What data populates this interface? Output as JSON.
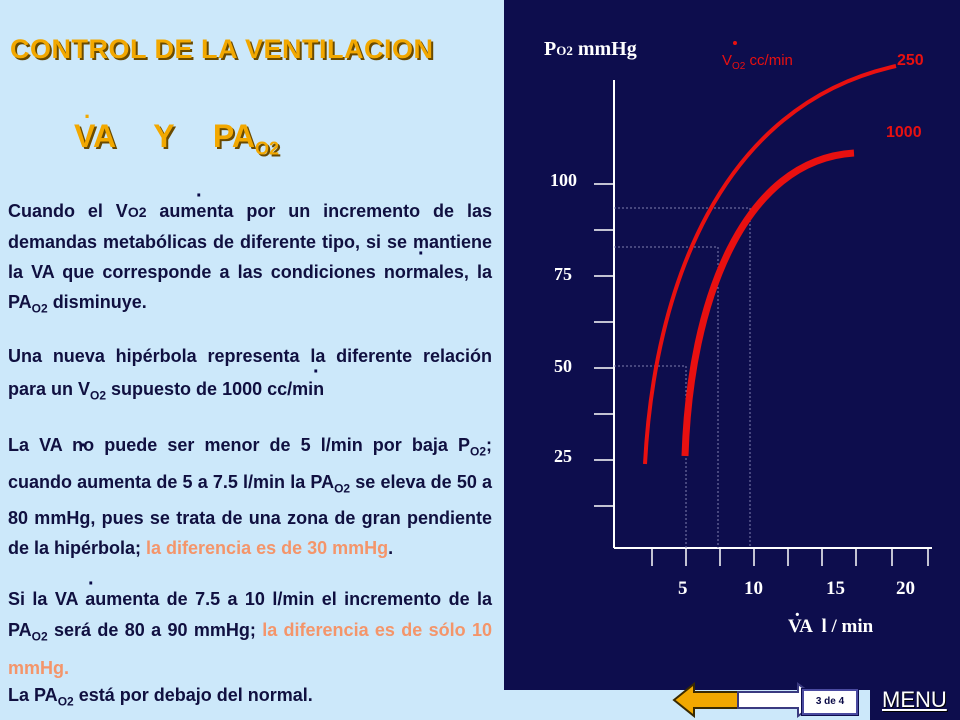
{
  "title": "CONTROL DE LA VENTILACION",
  "subtitle": {
    "va": "VA",
    "y": "Y",
    "pa": "PA",
    "pa_sub": "O2"
  },
  "paragraphs": {
    "p1": {
      "t1": "Cuando el V",
      "t1_sub": "O2",
      "t2": " aumenta por un incremento de las demandas metabólicas de diferente tipo, si se mantiene la VA que corresponde a las condiciones normales, la PA",
      "t2_sub": "O2",
      "t3": " disminuye."
    },
    "p2": {
      "t1": "Una nueva hipérbola representa la diferente relación para un V",
      "t1_sub": "O2",
      "t2": " supuesto de 1000 cc/min"
    },
    "p3": {
      "t1": "La VA no puede ser menor de 5 l/min por baja P",
      "t1_sub": "O2",
      "t2": "; cuando aumenta de 5 a 7.5 l/min la PA",
      "t2_sub": "O2",
      "t3": " se eleva de 50 a 80 mmHg, pues se trata de una zona de gran pendiente de la hipérbola; ",
      "highlight": "la diferencia es de 30 mmHg",
      "t4": "."
    },
    "p4": {
      "t1": "Si la VA aumenta  de 7.5 a 10 l/min el incremento de la PA",
      "t1_sub": "O2",
      "t2": " será de 80 a 90 mmHg; ",
      "highlight": "la diferencia es de sólo 10 mmHg."
    },
    "p5": {
      "t1": "La PA",
      "t1_sub": "O2",
      "t2": " está por debajo del normal."
    }
  },
  "graph": {
    "y_label_main": "P",
    "y_label_sub": "O2",
    "y_label_unit": " mmHg",
    "x_label": "VA  l / min",
    "vo2_label_main": "V",
    "vo2_label_sub": "O2",
    "vo2_label_unit": " cc/min",
    "curve_250_label": "250",
    "curve_1000_label": "1000",
    "y_ticks": [
      "100",
      "75",
      "50",
      "25"
    ],
    "x_ticks": [
      "5",
      "10",
      "15",
      "20"
    ],
    "curve_color": "#e81010",
    "axis_color": "#ffffff",
    "label_color": "#e81010"
  },
  "nav": {
    "page": "3 de  4",
    "menu": "MENU"
  }
}
